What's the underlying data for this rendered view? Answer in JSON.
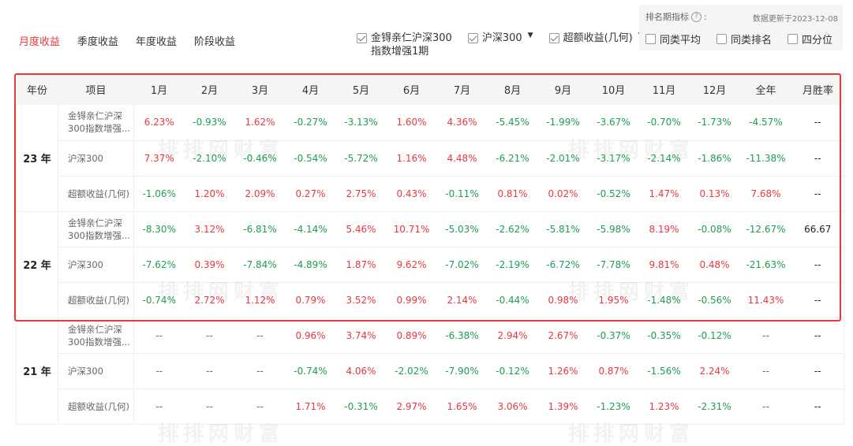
{
  "tabs": [
    "月度收益",
    "季度收益",
    "年度收益",
    "阶段收益"
  ],
  "legend": [
    {
      "label": "金锝亲仁沪深300",
      "sub": "指数增强1期",
      "checked": true,
      "dropdown": false
    },
    {
      "label": "沪深300",
      "sub": "",
      "checked": true,
      "dropdown": true
    },
    {
      "label": "超额收益(几何)",
      "sub": "",
      "checked": true,
      "dropdown": true
    }
  ],
  "rank_panel": {
    "title": "排名期指标",
    "help": "?",
    "colon": ":",
    "updated": "数据更新于2023-12-08",
    "options": [
      "同类平均",
      "同类排名",
      "四分位"
    ]
  },
  "table": {
    "headers": [
      "年份",
      "项目",
      "1月",
      "2月",
      "3月",
      "4月",
      "5月",
      "6月",
      "7月",
      "8月",
      "9月",
      "10月",
      "11月",
      "12月",
      "全年",
      "月胜率"
    ],
    "groups": [
      {
        "year": "23 年",
        "rows": [
          {
            "item": [
              "金锝亲仁沪深",
              "300指数增强..."
            ],
            "values": [
              "6.23%",
              "-0.93%",
              "1.62%",
              "-0.27%",
              "-3.13%",
              "1.60%",
              "4.36%",
              "-5.45%",
              "-1.99%",
              "-3.67%",
              "-0.70%",
              "-1.73%",
              "-4.57%"
            ],
            "win": "--"
          },
          {
            "item": [
              "沪深300"
            ],
            "values": [
              "7.37%",
              "-2.10%",
              "-0.46%",
              "-0.54%",
              "-5.72%",
              "1.16%",
              "4.48%",
              "-6.21%",
              "-2.01%",
              "-3.17%",
              "-2.14%",
              "-1.86%",
              "-11.38%"
            ],
            "win": "--"
          },
          {
            "item": [
              "超额收益(几何)"
            ],
            "values": [
              "-1.06%",
              "1.20%",
              "2.09%",
              "0.27%",
              "2.75%",
              "0.43%",
              "-0.11%",
              "0.81%",
              "0.02%",
              "-0.52%",
              "1.47%",
              "0.13%",
              "7.68%"
            ],
            "win": "--"
          }
        ]
      },
      {
        "year": "22 年",
        "rows": [
          {
            "item": [
              "金锝亲仁沪深",
              "300指数增强..."
            ],
            "values": [
              "-8.30%",
              "3.12%",
              "-6.81%",
              "-4.14%",
              "5.46%",
              "10.71%",
              "-5.03%",
              "-2.62%",
              "-5.81%",
              "-5.98%",
              "8.19%",
              "-0.08%",
              "-12.67%"
            ],
            "win": "66.67"
          },
          {
            "item": [
              "沪深300"
            ],
            "values": [
              "-7.62%",
              "0.39%",
              "-7.84%",
              "-4.89%",
              "1.87%",
              "9.62%",
              "-7.02%",
              "-2.19%",
              "-6.72%",
              "-7.78%",
              "9.81%",
              "0.48%",
              "-21.63%"
            ],
            "win": "--"
          },
          {
            "item": [
              "超额收益(几何)"
            ],
            "values": [
              "-0.74%",
              "2.72%",
              "1.12%",
              "0.79%",
              "3.52%",
              "0.99%",
              "2.14%",
              "-0.44%",
              "0.98%",
              "1.95%",
              "-1.48%",
              "-0.56%",
              "11.43%"
            ],
            "win": "--"
          }
        ]
      },
      {
        "year": "21 年",
        "rows": [
          {
            "item": [
              "金锝亲仁沪深",
              "300指数增强..."
            ],
            "values": [
              "--",
              "--",
              "--",
              "0.96%",
              "3.74%",
              "0.89%",
              "-6.38%",
              "2.94%",
              "2.67%",
              "-0.37%",
              "-0.35%",
              "-0.12%",
              "--"
            ],
            "win": "--"
          },
          {
            "item": [
              "沪深300"
            ],
            "values": [
              "--",
              "--",
              "--",
              "-0.74%",
              "4.06%",
              "-2.02%",
              "-7.90%",
              "-0.12%",
              "1.26%",
              "0.87%",
              "-1.56%",
              "2.24%",
              "--"
            ],
            "win": "--"
          },
          {
            "item": [
              "超额收益(几何)"
            ],
            "values": [
              "--",
              "--",
              "--",
              "1.71%",
              "-0.31%",
              "2.97%",
              "1.65%",
              "3.06%",
              "1.39%",
              "-1.23%",
              "1.23%",
              "-2.31%",
              "--"
            ],
            "win": "--"
          }
        ]
      }
    ]
  },
  "watermark": "排排网财富",
  "colors": {
    "positive": "#e8383d",
    "negative": "#1e9e54",
    "highlight": "#e8383d",
    "active_tab": "#e8383d"
  }
}
